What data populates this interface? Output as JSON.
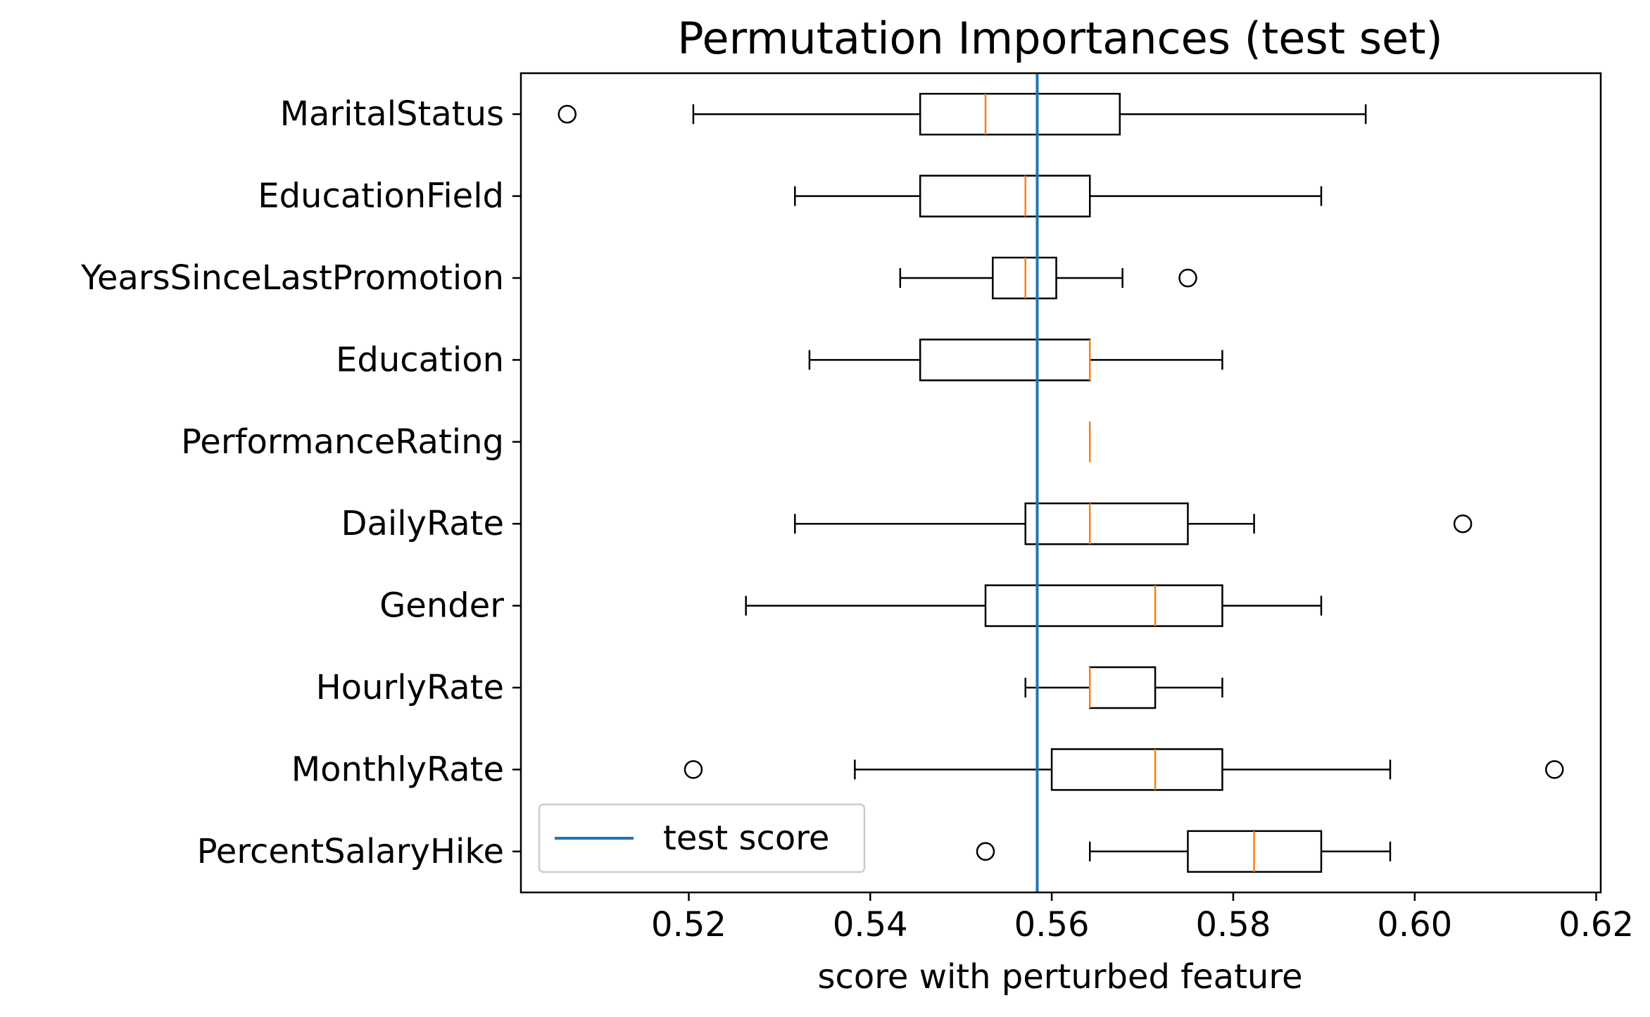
{
  "chart_data": {
    "type": "box",
    "orientation": "horizontal",
    "title": "Permutation Importances (test set)",
    "xlabel": "score with perturbed feature",
    "ylabel": "",
    "xlim": [
      0.5015,
      0.6205
    ],
    "xticks": [
      0.52,
      0.54,
      0.56,
      0.58,
      0.6,
      0.62
    ],
    "xtick_labels": [
      "0.52",
      "0.54",
      "0.56",
      "0.58",
      "0.60",
      "0.62"
    ],
    "grid": false,
    "legend": {
      "position": "lower-left",
      "entries": [
        "test score"
      ]
    },
    "colors": {
      "box": "#000000",
      "median": "#ff7f0e",
      "reference_line": "#1f77b4"
    },
    "reference_line": {
      "name": "test score",
      "x": 0.5584
    },
    "features": [
      {
        "name": "MaritalStatus",
        "whisker_low": 0.5205,
        "q1": 0.5455,
        "median": 0.5527,
        "q3": 0.5675,
        "whisker_high": 0.5946,
        "outliers": [
          0.5066
        ]
      },
      {
        "name": "EducationField",
        "whisker_low": 0.5317,
        "q1": 0.5455,
        "median": 0.5571,
        "q3": 0.5642,
        "whisker_high": 0.5897,
        "outliers": []
      },
      {
        "name": "YearsSinceLastPromotion",
        "whisker_low": 0.5433,
        "q1": 0.5535,
        "median": 0.5571,
        "q3": 0.5605,
        "whisker_high": 0.5678,
        "outliers": [
          0.575
        ]
      },
      {
        "name": "Education",
        "whisker_low": 0.5333,
        "q1": 0.5455,
        "median": 0.5642,
        "q3": 0.5642,
        "whisker_high": 0.5788,
        "outliers": []
      },
      {
        "name": "PerformanceRating",
        "whisker_low": 0.5642,
        "q1": 0.5642,
        "median": 0.5642,
        "q3": 0.5642,
        "whisker_high": 0.5642,
        "outliers": []
      },
      {
        "name": "DailyRate",
        "whisker_low": 0.5317,
        "q1": 0.5571,
        "median": 0.5642,
        "q3": 0.575,
        "whisker_high": 0.5823,
        "outliers": [
          0.6053
        ]
      },
      {
        "name": "Gender",
        "whisker_low": 0.5263,
        "q1": 0.5527,
        "median": 0.5714,
        "q3": 0.5788,
        "whisker_high": 0.5897,
        "outliers": []
      },
      {
        "name": "HourlyRate",
        "whisker_low": 0.5571,
        "q1": 0.5642,
        "median": 0.5642,
        "q3": 0.5714,
        "whisker_high": 0.5788,
        "outliers": []
      },
      {
        "name": "MonthlyRate",
        "whisker_low": 0.5383,
        "q1": 0.56,
        "median": 0.5714,
        "q3": 0.5788,
        "whisker_high": 0.5973,
        "outliers": [
          0.5205,
          0.6154
        ]
      },
      {
        "name": "PercentSalaryHike",
        "whisker_low": 0.5642,
        "q1": 0.575,
        "median": 0.5823,
        "q3": 0.5897,
        "whisker_high": 0.5973,
        "outliers": [
          0.5527
        ]
      }
    ]
  }
}
